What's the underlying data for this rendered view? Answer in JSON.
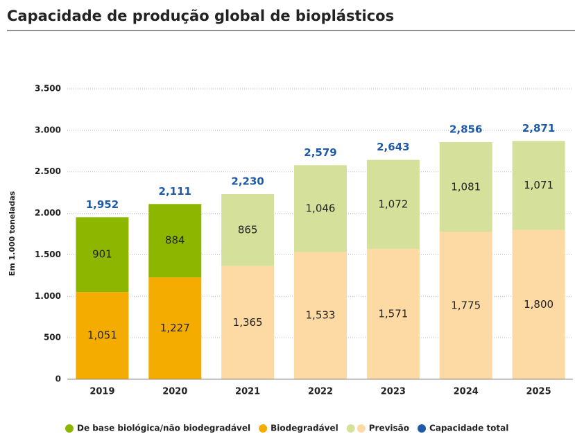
{
  "chart_data": {
    "type": "stacked_bar",
    "title": "Capacidade de produção global de bioplásticos",
    "y_label": "Em 1.000 toneladas",
    "categories": [
      "2019",
      "2020",
      "2021",
      "2022",
      "2023",
      "2024",
      "2025"
    ],
    "series": [
      {
        "name": "Biodegradável",
        "color": "#f5ac00",
        "colors": [
          "#f5ac00",
          "#f5ac00",
          "#fdd9a3",
          "#fdd9a3",
          "#fdd9a3",
          "#fdd9a3",
          "#fdd9a3"
        ],
        "values": [
          1051,
          1227,
          1365,
          1533,
          1571,
          1775,
          1800
        ],
        "value_labels": [
          "1,051",
          "1,227",
          "1,365",
          "1,533",
          "1,571",
          "1,775",
          "1,800"
        ]
      },
      {
        "name": "De base biológica/não biodegradável",
        "color": "#8db600",
        "colors": [
          "#8db600",
          "#8db600",
          "#d5e09a",
          "#d5e09a",
          "#d5e09a",
          "#d5e09a",
          "#d5e09a"
        ],
        "values": [
          901,
          884,
          865,
          1046,
          1072,
          1081,
          1071
        ],
        "value_labels": [
          "901",
          "884",
          "865",
          "1,046",
          "1,072",
          "1,081",
          "1,071"
        ]
      }
    ],
    "forecast": {
      "name": "Previsão",
      "colors": [
        "#d5e09a",
        "#fdd9a3"
      ]
    },
    "totals": {
      "name": "Capacidade total",
      "color": "#1e5aa8",
      "values": [
        1952,
        2111,
        2230,
        2579,
        2643,
        2856,
        2871
      ],
      "value_labels": [
        "1,952",
        "2,111",
        "2,230",
        "2,579",
        "2,643",
        "2,856",
        "2,871"
      ]
    },
    "ylim": [
      0,
      3500
    ],
    "yticks": [
      0,
      500,
      {
        "value": 1000,
        "label": "1.000"
      },
      {
        "value": 1500,
        "label": "1.500"
      },
      {
        "value": 2000,
        "label": "2.000"
      },
      {
        "value": 2500,
        "label": "2.500"
      },
      {
        "value": 3000,
        "label": "3.000"
      },
      {
        "value": 3500,
        "label": "3.500"
      }
    ],
    "grid": true
  }
}
